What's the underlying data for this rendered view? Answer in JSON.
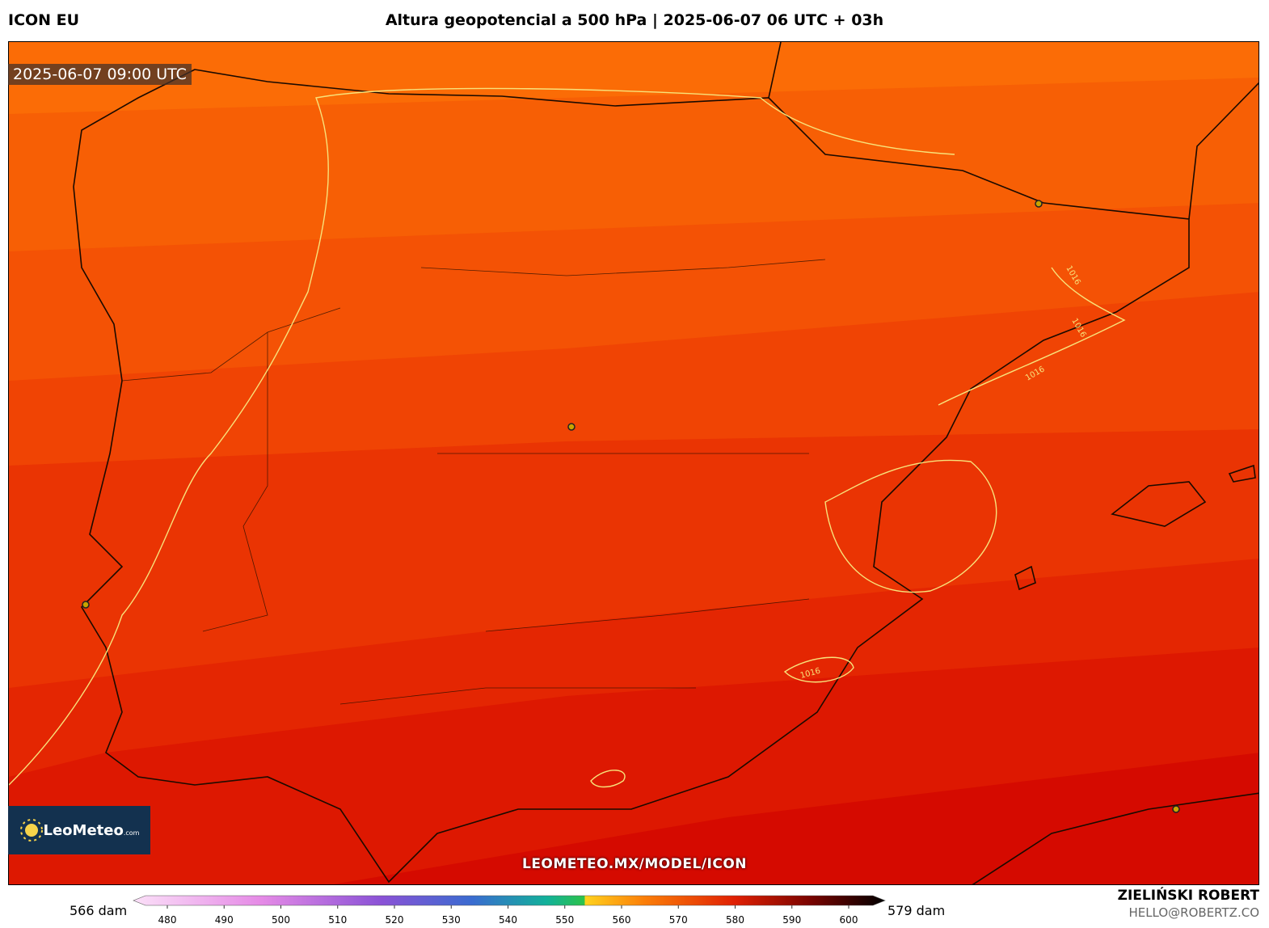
{
  "header": {
    "model": "ICON EU",
    "title": "Altura geopotencial a 500 hPa | 2025-06-07 06 UTC + 03h"
  },
  "map": {
    "timestamp": "2025-06-07 09:00 UTC",
    "logo": "LeoMeteo",
    "logo_suffix": ".com",
    "url": "LEOMETEO.MX/MODEL/ICON",
    "contour_labels": [
      "1016",
      "1016",
      "1016",
      "1016"
    ]
  },
  "colorbar": {
    "min_label": "566 dam",
    "max_label": "579 dam",
    "ticks": [
      480,
      490,
      500,
      510,
      520,
      530,
      540,
      550,
      560,
      570,
      580,
      590,
      600
    ]
  },
  "footer": {
    "author": "ZIELIŃSKI ROBERT",
    "email": "HELLO@ROBERTZ.CO"
  }
}
